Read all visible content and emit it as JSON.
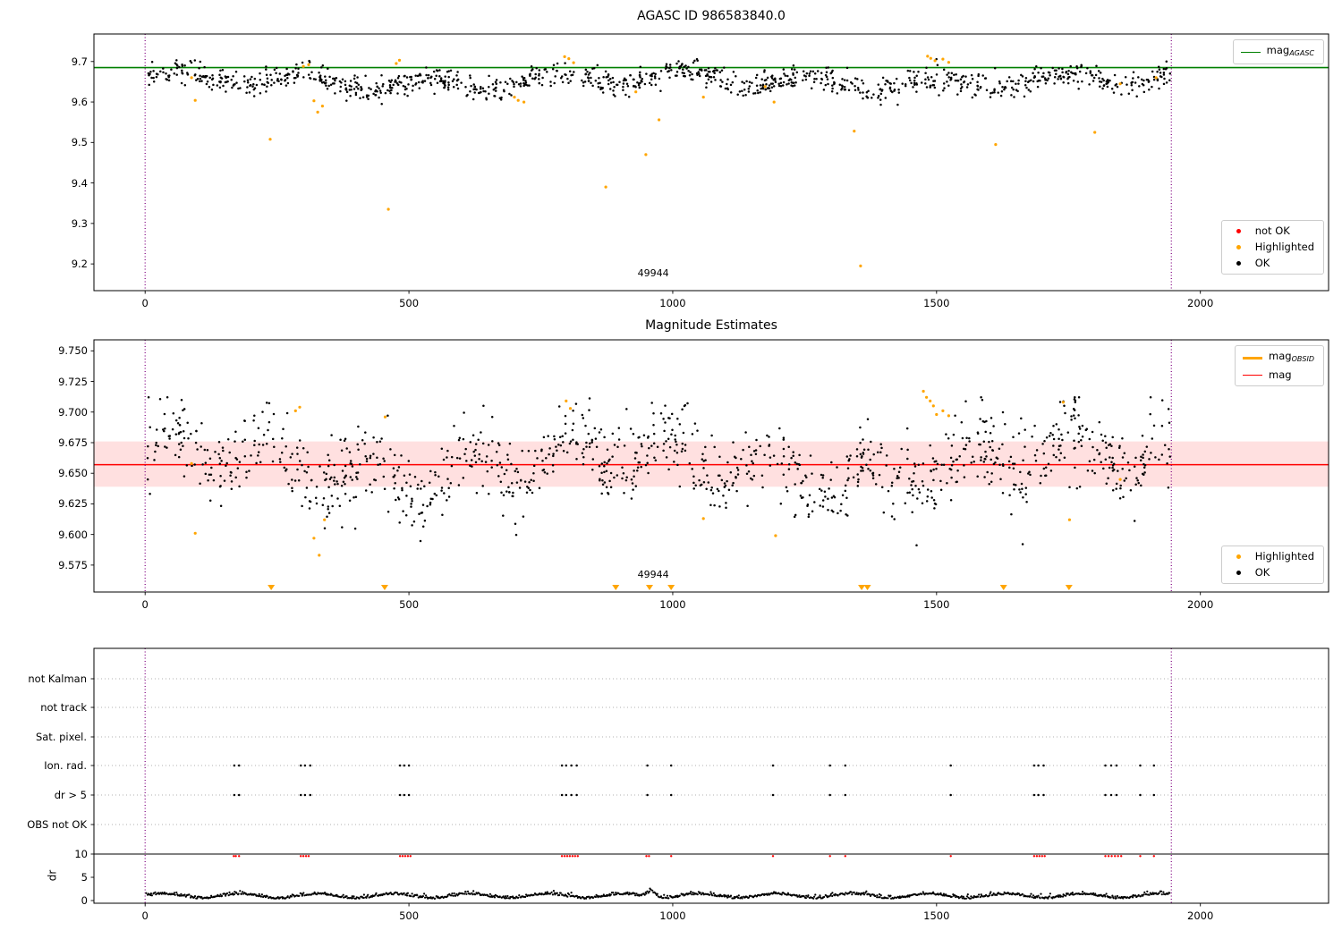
{
  "chart_data": [
    {
      "type": "scatter",
      "title": "AGASC ID 986583840.0",
      "xlim": [
        -97,
        2243
      ],
      "ylim": [
        9.134,
        9.768
      ],
      "xticks": [
        0,
        500,
        1000,
        1500,
        2000
      ],
      "xtick_labels": [
        "0",
        "500",
        "1000",
        "1500",
        "2000"
      ],
      "yticks": [
        9.2,
        9.3,
        9.4,
        9.5,
        9.6,
        9.7
      ],
      "ytick_labels": [
        "9.2",
        "9.3",
        "9.4",
        "9.5",
        "9.6",
        "9.7"
      ],
      "ref_line": {
        "y": 9.685,
        "color": "green",
        "legend_main": "mag",
        "legend_sub": "AGASC"
      },
      "vlines": {
        "x": [
          0,
          1945
        ],
        "color": "#800080"
      },
      "annotation": {
        "text": "49944",
        "x": 963
      },
      "legend_bottom": [
        {
          "label": "not OK",
          "color": "red"
        },
        {
          "label": "Highlighted",
          "color": "orange"
        },
        {
          "label": "OK",
          "color": "black"
        }
      ],
      "ok_points_gen": {
        "seed": 42,
        "n": 1150,
        "x_min": 3,
        "x_max": 1943,
        "y_base": 9.652,
        "wave1_amp": 0.015,
        "wave1_period": 240,
        "wave2_amp": 0.01,
        "wave2_period": 925,
        "noise_sigma": 0.015,
        "clip_min": 9.588,
        "clip_max": 9.706
      },
      "highlighted_points": [
        [
          88,
          9.66
        ],
        [
          95,
          9.604
        ],
        [
          237,
          9.508
        ],
        [
          300,
          9.688
        ],
        [
          310,
          9.692
        ],
        [
          320,
          9.603
        ],
        [
          327,
          9.575
        ],
        [
          336,
          9.59
        ],
        [
          461,
          9.335
        ],
        [
          476,
          9.695
        ],
        [
          482,
          9.703
        ],
        [
          700,
          9.612
        ],
        [
          707,
          9.604
        ],
        [
          718,
          9.6
        ],
        [
          795,
          9.712
        ],
        [
          803,
          9.707
        ],
        [
          812,
          9.697
        ],
        [
          873,
          9.39
        ],
        [
          930,
          9.625
        ],
        [
          949,
          9.47
        ],
        [
          974,
          9.556
        ],
        [
          1058,
          9.612
        ],
        [
          1175,
          9.638
        ],
        [
          1192,
          9.6
        ],
        [
          1344,
          9.528
        ],
        [
          1356,
          9.195
        ],
        [
          1483,
          9.713
        ],
        [
          1489,
          9.708
        ],
        [
          1497,
          9.702
        ],
        [
          1512,
          9.706
        ],
        [
          1523,
          9.698
        ],
        [
          1612,
          9.495
        ],
        [
          1800,
          9.525
        ],
        [
          1848,
          9.645
        ],
        [
          1916,
          9.66
        ]
      ]
    },
    {
      "type": "scatter",
      "title": "Magnitude Estimates",
      "xlim": [
        -97,
        2243
      ],
      "ylim": [
        9.553,
        9.759
      ],
      "xticks": [
        0,
        500,
        1000,
        1500,
        2000
      ],
      "xtick_labels": [
        "0",
        "500",
        "1000",
        "1500",
        "2000"
      ],
      "yticks": [
        9.575,
        9.6,
        9.625,
        9.65,
        9.675,
        9.7,
        9.725,
        9.75
      ],
      "ytick_labels": [
        "9.575",
        "9.600",
        "9.625",
        "9.650",
        "9.675",
        "9.700",
        "9.725",
        "9.750"
      ],
      "ref_line": {
        "y": 9.657,
        "color": "red",
        "legend_main": "mag",
        "legend_sub": ""
      },
      "band": {
        "y0": 9.639,
        "y1": 9.676,
        "color": "red",
        "opacity": 0.12
      },
      "obsid_line": {
        "color": "orange",
        "legend_main": "mag",
        "legend_sub": "OBSID"
      },
      "vlines": {
        "x": [
          0,
          1945
        ],
        "color": "#800080"
      },
      "annotation": {
        "text": "49944",
        "x": 963
      },
      "legend_bottom": [
        {
          "label": "Highlighted",
          "color": "orange"
        },
        {
          "label": "OK",
          "color": "black"
        }
      ],
      "clipped_markers": {
        "color": "orange",
        "x": [
          239,
          454,
          892,
          956,
          997,
          1358,
          1369,
          1627,
          1751
        ]
      },
      "ok_points_gen": {
        "seed": 77,
        "n": 1150,
        "x_min": 3,
        "x_max": 1943,
        "y_base": 9.657,
        "wave1_amp": 0.016,
        "wave1_period": 190,
        "wave2_amp": 0.012,
        "wave2_period": 830,
        "noise_sigma": 0.016,
        "clip_min": 9.574,
        "clip_max": 9.712
      },
      "highlighted_points": [
        [
          88,
          9.658
        ],
        [
          95,
          9.601
        ],
        [
          285,
          9.701
        ],
        [
          293,
          9.704
        ],
        [
          320,
          9.597
        ],
        [
          330,
          9.583
        ],
        [
          340,
          9.612
        ],
        [
          455,
          9.696
        ],
        [
          798,
          9.709
        ],
        [
          806,
          9.703
        ],
        [
          1058,
          9.613
        ],
        [
          1195,
          9.599
        ],
        [
          1475,
          9.717
        ],
        [
          1481,
          9.712
        ],
        [
          1488,
          9.709
        ],
        [
          1494,
          9.705
        ],
        [
          1500,
          9.698
        ],
        [
          1512,
          9.701
        ],
        [
          1523,
          9.697
        ],
        [
          1740,
          9.708
        ],
        [
          1752,
          9.612
        ],
        [
          1848,
          9.645
        ]
      ]
    },
    {
      "type": "flags",
      "rows": [
        "not Kalman",
        "not track",
        "Sat. pixel.",
        "Ion. rad.",
        "dr > 5",
        "OBS not OK"
      ],
      "rows_with_points": [
        "Ion. rad.",
        "dr > 5"
      ],
      "flag_x": [
        169,
        178,
        295,
        303,
        313,
        483,
        491,
        500,
        790,
        798,
        808,
        818,
        952,
        997,
        1190,
        1298,
        1327,
        1527,
        1685,
        1693,
        1703,
        1820,
        1831,
        1841,
        1886,
        1912
      ],
      "dr_axis": {
        "label": "dr",
        "ticks": [
          0,
          5,
          10
        ],
        "tick_labels": [
          "0",
          "5",
          "10"
        ],
        "hline": 10
      },
      "dr_red_x": [
        168,
        172,
        178,
        295,
        300,
        305,
        310,
        483,
        488,
        493,
        498,
        503,
        790,
        795,
        800,
        805,
        810,
        815,
        820,
        950,
        955,
        997,
        1190,
        1298,
        1327,
        1527,
        1685,
        1690,
        1695,
        1700,
        1705,
        1820,
        1826,
        1832,
        1838,
        1844,
        1850,
        1886,
        1912
      ],
      "dr_ok_gen": {
        "seed": 7,
        "n": 1100,
        "x_min": 2,
        "x_max": 1943,
        "base": 0.85,
        "wave_amp": 0.45,
        "wave_period": 145,
        "noise_sigma": 0.3,
        "bump_x": 960,
        "bump_amp": 1.3,
        "bump_width": 12,
        "clip_min": 0.05,
        "clip_max": 3.3
      },
      "xlim": [
        -97,
        2243
      ],
      "xticks": [
        0,
        500,
        1000,
        1500,
        2000
      ],
      "xtick_labels": [
        "0",
        "500",
        "1000",
        "1500",
        "2000"
      ],
      "vlines": {
        "x": [
          0,
          1945
        ],
        "color": "#800080"
      }
    }
  ]
}
